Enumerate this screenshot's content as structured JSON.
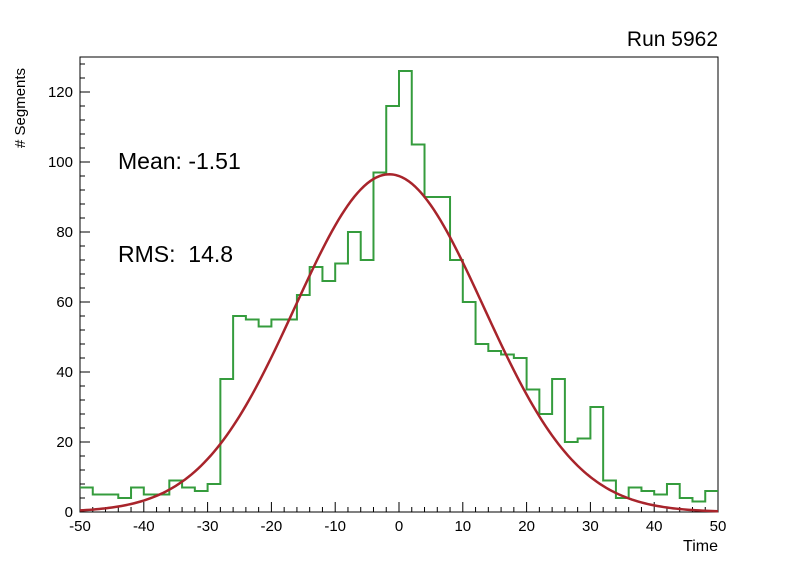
{
  "title": "Run 5962",
  "stats": {
    "mean_label": "Mean: -1.51",
    "rms_label": "RMS:  14.8"
  },
  "chart_data": {
    "type": "bar",
    "subtype": "histogram-with-gaussian-fit",
    "title": "Run 5962",
    "xlabel": "Time",
    "ylabel": "# Segments",
    "xlim": [
      -50,
      50
    ],
    "ylim": [
      0,
      130
    ],
    "grid": false,
    "bin_width": 2,
    "bins_start": -50,
    "counts": [
      7,
      5,
      5,
      4,
      7,
      5,
      5,
      9,
      7,
      6,
      8,
      38,
      56,
      55,
      53,
      55,
      55,
      62,
      70,
      66,
      71,
      80,
      72,
      97,
      116,
      126,
      105,
      90,
      90,
      72,
      60,
      48,
      46,
      45,
      44,
      35,
      28,
      38,
      20,
      21,
      30,
      9,
      4,
      7,
      6,
      5,
      8,
      4,
      3,
      6
    ],
    "fit": {
      "type": "gaussian",
      "amplitude": 96.5,
      "mean": -1.51,
      "sigma": 14.8
    },
    "x_major_ticks": [
      -50,
      -40,
      -30,
      -20,
      -10,
      0,
      10,
      20,
      30,
      40,
      50
    ],
    "x_minor_step": 2,
    "y_major_ticks": [
      0,
      20,
      40,
      60,
      80,
      100,
      120
    ],
    "y_minor_step": 4,
    "hist_color": "#359c3d",
    "fit_color": "#a8242b",
    "axis_color": "#000000"
  }
}
